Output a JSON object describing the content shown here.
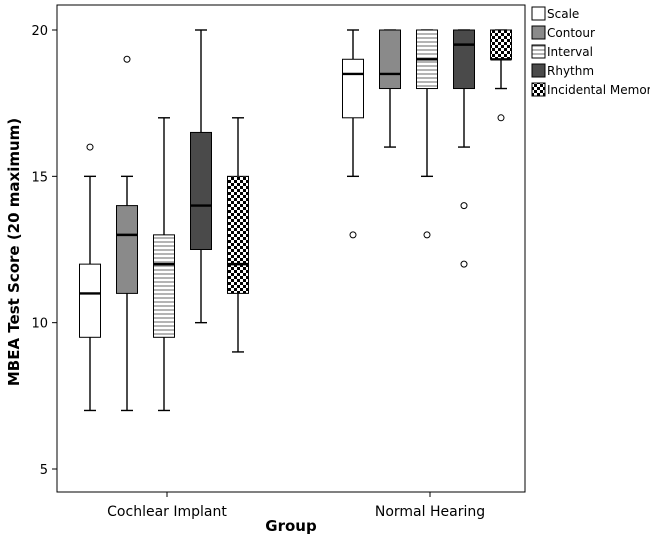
{
  "chart_data": {
    "type": "boxplot",
    "title": "",
    "xlabel": "Group",
    "ylabel": "MBEA Test Score (20 maximum)",
    "ylim": [
      4,
      20.5
    ],
    "yticks": [
      5,
      10,
      15,
      20
    ],
    "grid": false,
    "legend_position": "top-right",
    "categories": [
      "Cochlear Implant",
      "Normal Hearing"
    ],
    "series": [
      {
        "name": "Scale",
        "pattern": "white",
        "boxes": [
          {
            "whisker_low": 7,
            "q1": 9.5,
            "median": 11,
            "q3": 12,
            "whisker_high": 15,
            "outliers": [
              16
            ]
          },
          {
            "whisker_low": 15,
            "q1": 17,
            "median": 18.5,
            "q3": 19,
            "whisker_high": 20,
            "outliers": [
              13
            ]
          }
        ]
      },
      {
        "name": "Contour",
        "pattern": "gray",
        "boxes": [
          {
            "whisker_low": 7,
            "q1": 11,
            "median": 13,
            "q3": 14,
            "whisker_high": 15,
            "outliers": [
              19
            ]
          },
          {
            "whisker_low": 16,
            "q1": 18,
            "median": 18.5,
            "q3": 20,
            "whisker_high": 20,
            "outliers": []
          }
        ]
      },
      {
        "name": "Interval",
        "pattern": "horizontal-lines",
        "boxes": [
          {
            "whisker_low": 7,
            "q1": 9.5,
            "median": 12,
            "q3": 13,
            "whisker_high": 17,
            "outliers": []
          },
          {
            "whisker_low": 15,
            "q1": 18,
            "median": 19,
            "q3": 20,
            "whisker_high": 20,
            "outliers": [
              13
            ]
          }
        ]
      },
      {
        "name": "Rhythm",
        "pattern": "dark",
        "boxes": [
          {
            "whisker_low": 10,
            "q1": 12.5,
            "median": 14,
            "q3": 16.5,
            "whisker_high": 20,
            "outliers": []
          },
          {
            "whisker_low": 16,
            "q1": 18,
            "median": 19.5,
            "q3": 20,
            "whisker_high": 20,
            "outliers": [
              14,
              12
            ]
          }
        ]
      },
      {
        "name": "Incidental Memory",
        "pattern": "checker",
        "boxes": [
          {
            "whisker_low": 9,
            "q1": 11,
            "median": 12,
            "q3": 15,
            "whisker_high": 17,
            "outliers": []
          },
          {
            "whisker_low": 18,
            "q1": 19,
            "median": 19,
            "q3": 20,
            "whisker_high": 20,
            "outliers": [
              17
            ]
          }
        ]
      }
    ],
    "colors": {
      "white": "#ffffff",
      "gray": "#8a8a8a",
      "horizontal-lines": "#ffffff",
      "dark": "#4a4a4a",
      "checker": "#000000",
      "stroke": "#000000"
    }
  }
}
